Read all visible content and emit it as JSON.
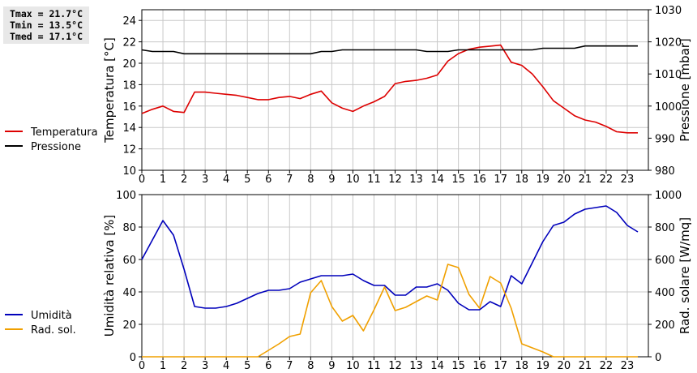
{
  "stats": {
    "tmax": "Tmax = 21.7°C",
    "tmin": "Tmin = 13.5°C",
    "tmed": "Tmed = 17.1°C"
  },
  "colors": {
    "temperature": "#dd0000",
    "pressure": "#000000",
    "humidity": "#0000bb",
    "solar": "#f0a000",
    "grid": "#c8c8c8",
    "stats_box": "#e8e8e8"
  },
  "chart_data": [
    {
      "type": "line",
      "x_ticks": [
        0,
        1,
        2,
        3,
        4,
        5,
        6,
        7,
        8,
        9,
        10,
        11,
        12,
        13,
        14,
        15,
        16,
        17,
        18,
        19,
        20,
        21,
        22,
        23
      ],
      "xlim": [
        0,
        24
      ],
      "ylabel_left": "Temperatura [°C]",
      "ylabel_right": "Pressione [mbar]",
      "ylim_left": [
        10,
        25
      ],
      "yticks_left": [
        10,
        12,
        14,
        16,
        18,
        20,
        22,
        24
      ],
      "ylim_right": [
        980,
        1030
      ],
      "yticks_right": [
        980,
        990,
        1000,
        1010,
        1020,
        1030
      ],
      "grid": true,
      "legend_position": "left",
      "series": [
        {
          "name": "Temperatura",
          "axis": "left",
          "x": [
            0,
            0.5,
            1,
            1.5,
            2,
            2.5,
            3,
            3.5,
            4,
            4.5,
            5,
            5.5,
            6,
            6.5,
            7,
            7.5,
            8,
            8.5,
            9,
            9.5,
            10,
            10.5,
            11,
            11.5,
            12,
            12.5,
            13,
            13.5,
            14,
            14.5,
            15,
            15.5,
            16,
            16.5,
            17,
            17.5,
            18,
            18.5,
            19,
            19.5,
            20,
            20.5,
            21,
            21.5,
            22,
            22.5,
            23,
            23.5
          ],
          "values": [
            15.3,
            15.7,
            16.0,
            15.5,
            15.4,
            17.3,
            17.3,
            17.2,
            17.1,
            17.0,
            16.8,
            16.6,
            16.6,
            16.8,
            16.9,
            16.7,
            17.1,
            17.4,
            16.3,
            15.8,
            15.5,
            16.0,
            16.4,
            16.9,
            18.1,
            18.3,
            18.4,
            18.6,
            18.9,
            20.2,
            20.9,
            21.3,
            21.5,
            21.6,
            21.7,
            20.1,
            19.8,
            19.0,
            17.8,
            16.5,
            15.8,
            15.1,
            14.7,
            14.5,
            14.1,
            13.6,
            13.5,
            13.5
          ]
        },
        {
          "name": "Pressione",
          "axis": "right",
          "x": [
            0,
            0.5,
            1,
            1.5,
            2,
            2.5,
            3,
            3.5,
            4,
            4.5,
            5,
            5.5,
            6,
            6.5,
            7,
            7.5,
            8,
            8.5,
            9,
            9.5,
            10,
            10.5,
            11,
            11.5,
            12,
            12.5,
            13,
            13.5,
            14,
            14.5,
            15,
            15.5,
            16,
            16.5,
            17,
            17.5,
            18,
            18.5,
            19,
            19.5,
            20,
            20.5,
            21,
            21.5,
            22,
            22.5,
            23,
            23.5
          ],
          "values": [
            1017.5,
            1017,
            1017,
            1017,
            1016.3,
            1016.3,
            1016.3,
            1016.3,
            1016.3,
            1016.3,
            1016.3,
            1016.3,
            1016.3,
            1016.3,
            1016.3,
            1016.3,
            1016.3,
            1017,
            1017,
            1017.5,
            1017.5,
            1017.5,
            1017.5,
            1017.5,
            1017.5,
            1017.5,
            1017.5,
            1017,
            1017,
            1017,
            1017.5,
            1017.5,
            1017.5,
            1017.5,
            1017.5,
            1017.5,
            1017.5,
            1017.5,
            1018,
            1018,
            1018,
            1018,
            1018.7,
            1018.7,
            1018.7,
            1018.7,
            1018.7,
            1018.7
          ]
        }
      ]
    },
    {
      "type": "line",
      "x_ticks": [
        0,
        1,
        2,
        3,
        4,
        5,
        6,
        7,
        8,
        9,
        10,
        11,
        12,
        13,
        14,
        15,
        16,
        17,
        18,
        19,
        20,
        21,
        22,
        23
      ],
      "xlim": [
        0,
        24
      ],
      "ylabel_left": "Umidità relativa [%]",
      "ylabel_right": "Rad. solare [W/mq]",
      "ylim_left": [
        0,
        100
      ],
      "yticks_left": [
        0,
        20,
        40,
        60,
        80,
        100
      ],
      "ylim_right": [
        0,
        1000
      ],
      "yticks_right": [
        0,
        200,
        400,
        600,
        800,
        1000
      ],
      "grid": true,
      "legend_position": "left",
      "series": [
        {
          "name": "Umidità",
          "axis": "left",
          "x": [
            0,
            0.5,
            1,
            1.5,
            2,
            2.5,
            3,
            3.5,
            4,
            4.5,
            5,
            5.5,
            6,
            6.5,
            7,
            7.5,
            8,
            8.5,
            9,
            9.5,
            10,
            10.5,
            11,
            11.5,
            12,
            12.5,
            13,
            13.5,
            14,
            14.5,
            15,
            15.5,
            16,
            16.5,
            17,
            17.5,
            18,
            18.5,
            19,
            19.5,
            20,
            20.5,
            21,
            21.5,
            22,
            22.5,
            23,
            23.5
          ],
          "values": [
            60,
            72,
            84,
            75,
            54,
            31,
            30,
            30,
            31,
            33,
            36,
            39,
            41,
            41,
            42,
            46,
            48,
            50,
            50,
            50,
            51,
            47,
            44,
            44,
            38,
            38,
            43,
            43,
            45,
            41,
            33,
            29,
            29,
            34,
            31,
            50,
            45,
            58,
            71,
            81,
            83,
            88,
            91,
            92,
            93,
            89,
            81,
            77
          ]
        },
        {
          "name": "Rad. sol.",
          "axis": "right",
          "x": [
            0,
            0.5,
            1,
            1.5,
            2,
            2.5,
            3,
            3.5,
            4,
            4.5,
            5,
            5.5,
            6,
            6.5,
            7,
            7.5,
            8,
            8.5,
            9,
            9.5,
            10,
            10.5,
            11,
            11.5,
            12,
            12.5,
            13,
            13.5,
            14,
            14.5,
            15,
            15.5,
            16,
            16.5,
            17,
            17.5,
            18,
            18.5,
            19,
            19.5,
            20,
            20.5,
            21,
            21.5,
            22,
            22.5,
            23,
            23.5
          ],
          "values": [
            0,
            0,
            0,
            0,
            0,
            0,
            0,
            0,
            0,
            0,
            0,
            0,
            40,
            80,
            125,
            140,
            395,
            470,
            310,
            220,
            255,
            160,
            290,
            430,
            285,
            305,
            340,
            375,
            350,
            570,
            550,
            385,
            300,
            495,
            455,
            300,
            80,
            55,
            30,
            0,
            0,
            0,
            0,
            0,
            0,
            0,
            0,
            0
          ]
        }
      ]
    }
  ]
}
